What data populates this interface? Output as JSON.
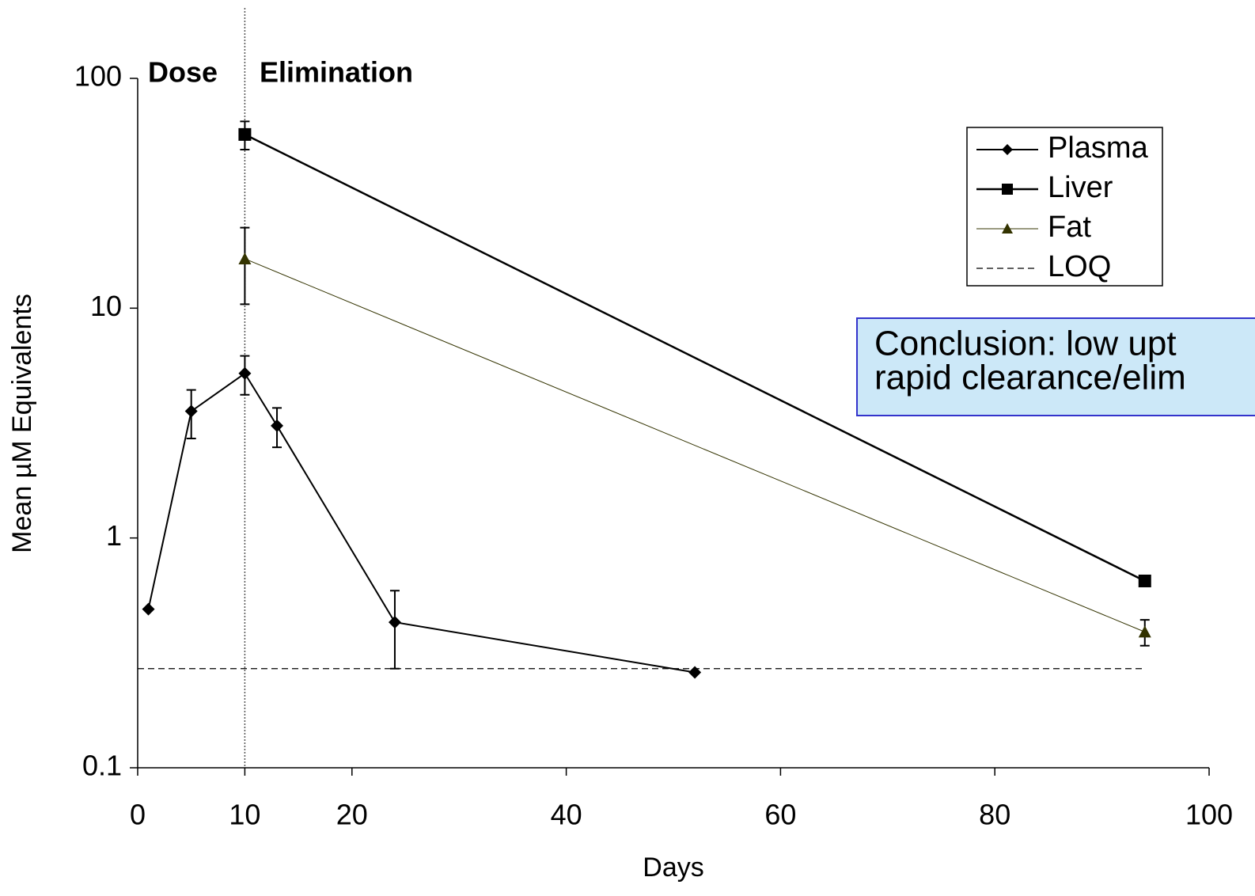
{
  "chart_data": {
    "type": "line",
    "xlabel": "Days",
    "ylabel": "Mean µM Equivalents",
    "xlim": [
      0,
      100
    ],
    "xticks": [
      0,
      10,
      20,
      40,
      60,
      80,
      100
    ],
    "ylim": [
      0.1,
      100
    ],
    "yticks": [
      0.1,
      1,
      10,
      100
    ],
    "log_y": true,
    "legend": "upper right",
    "phase_line_x": 10,
    "phase_labels": [
      "Dose",
      "Elimination"
    ],
    "conclusion": [
      "Conclusion:  low upt",
      "rapid clearance/elim"
    ],
    "series": [
      {
        "name": "Plasma",
        "color": "#000000",
        "marker": "diamond",
        "x": [
          1,
          5,
          10,
          13,
          24,
          52
        ],
        "values": [
          0.49,
          3.56,
          5.2,
          3.08,
          0.43,
          0.26
        ],
        "errors": [
          null,
          0.85,
          1.0,
          0.6,
          0.16,
          null
        ]
      },
      {
        "name": "Liver",
        "color": "#000000",
        "marker": "square",
        "x": [
          10,
          94
        ],
        "values": [
          57,
          0.65
        ],
        "errors": [
          8,
          null
        ]
      },
      {
        "name": "Fat",
        "color": "#333300",
        "marker": "triangle",
        "x": [
          10,
          94
        ],
        "values": [
          16.4,
          0.39
        ],
        "errors": [
          6,
          0.05
        ]
      },
      {
        "name": "LOQ",
        "color": "#000000",
        "dashed": true,
        "x": [
          0,
          94
        ],
        "values": [
          0.27,
          0.27
        ]
      }
    ]
  }
}
